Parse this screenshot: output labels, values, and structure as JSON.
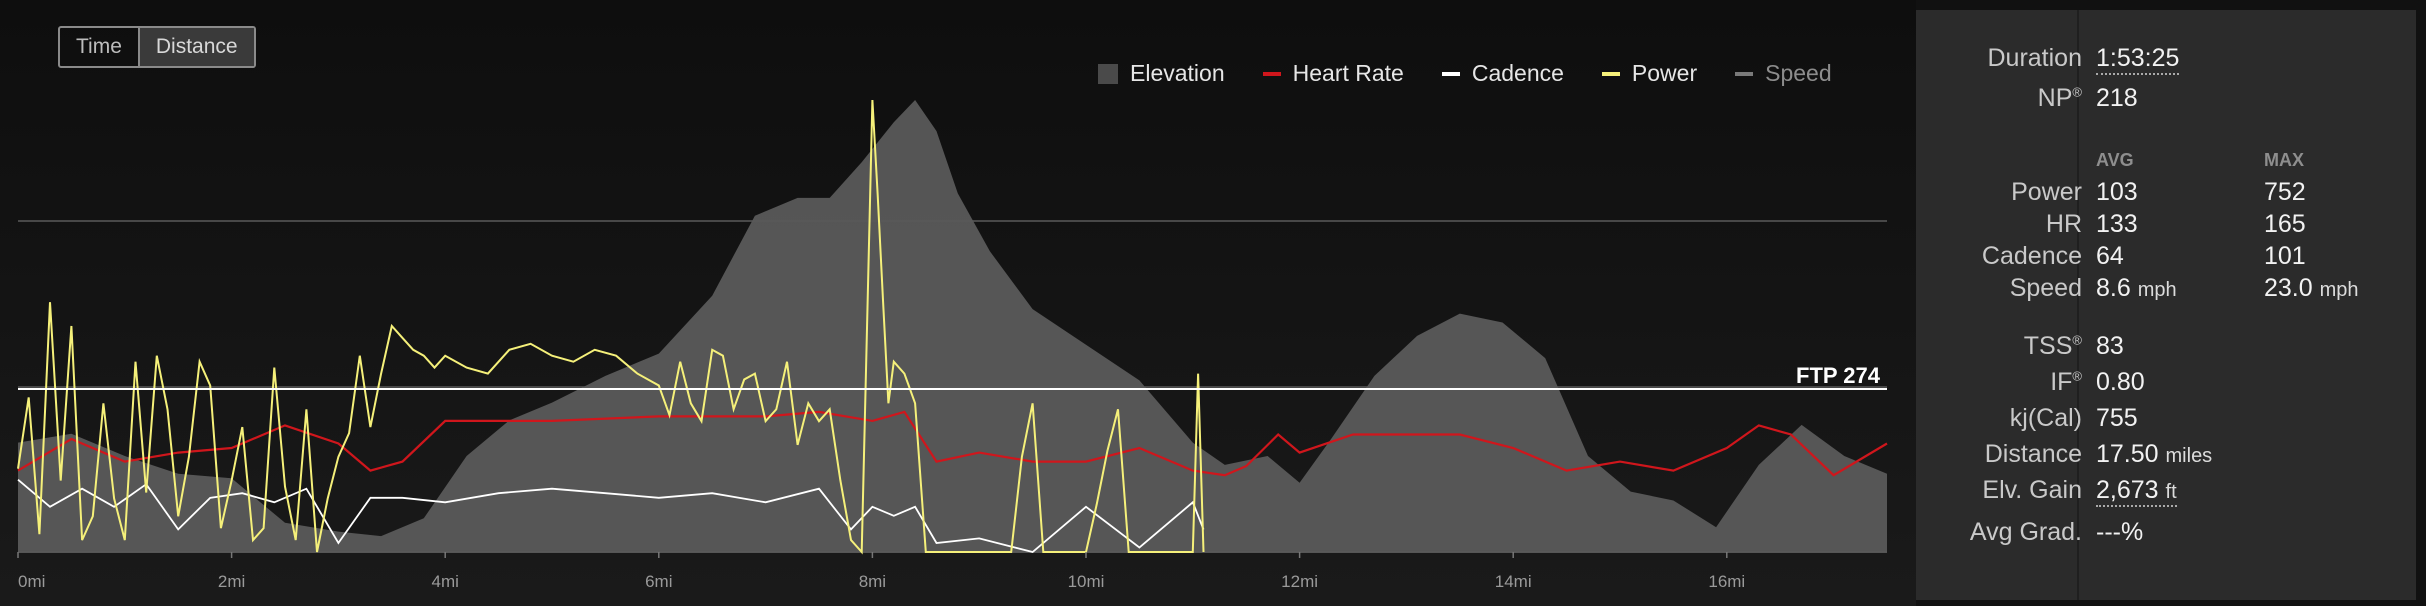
{
  "toggle": {
    "time_label": "Time",
    "distance_label": "Distance",
    "active": "Distance"
  },
  "legend": {
    "elevation": "Elevation",
    "heart_rate": "Heart Rate",
    "cadence": "Cadence",
    "power": "Power",
    "speed": "Speed"
  },
  "colors": {
    "elevation": "#5a5a5a",
    "heart_rate": "#d0161c",
    "cadence": "#ffffff",
    "power": "#f5f07a",
    "speed": "#7a7a7a",
    "ftp_line": "#ffffff"
  },
  "chart_data": {
    "type": "line",
    "xlabel": "",
    "ylabel": "",
    "x_unit": "mi",
    "xlim": [
      0,
      17.5
    ],
    "x_ticks": [
      "0mi",
      "2mi",
      "4mi",
      "6mi",
      "8mi",
      "10mi",
      "12mi",
      "14mi",
      "16mi"
    ],
    "power_ylim": [
      0,
      760
    ],
    "ftp_label": "FTP 274",
    "ftp_value": 274,
    "grid": true,
    "legend_position": "top-right",
    "series": [
      {
        "name": "Elevation",
        "type": "area",
        "relative_level": true,
        "x": [
          0,
          0.5,
          1,
          1.5,
          2,
          2.5,
          3,
          3.4,
          3.8,
          4.2,
          4.6,
          5,
          5.5,
          6,
          6.5,
          6.9,
          7.3,
          7.6,
          7.9,
          8.2,
          8.4,
          8.6,
          8.8,
          9.1,
          9.5,
          10,
          10.5,
          11,
          11.3,
          11.7,
          12,
          12.3,
          12.7,
          13.1,
          13.5,
          13.9,
          14.3,
          14.7,
          15.1,
          15.5,
          15.9,
          16.3,
          16.7,
          17.1,
          17.5
        ],
        "values": [
          0.23,
          0.25,
          0.2,
          0.16,
          0.15,
          0.05,
          0.03,
          0.02,
          0.06,
          0.2,
          0.28,
          0.32,
          0.38,
          0.43,
          0.56,
          0.74,
          0.78,
          0.78,
          0.86,
          0.95,
          1.0,
          0.93,
          0.79,
          0.66,
          0.53,
          0.45,
          0.37,
          0.23,
          0.18,
          0.2,
          0.14,
          0.24,
          0.38,
          0.47,
          0.52,
          0.5,
          0.42,
          0.2,
          0.12,
          0.1,
          0.04,
          0.18,
          0.27,
          0.2,
          0.16
        ]
      },
      {
        "name": "Heart Rate",
        "type": "line",
        "relative_level": true,
        "x": [
          0,
          0.5,
          1,
          1.5,
          2,
          2.5,
          3,
          3.3,
          3.6,
          4,
          4.5,
          5,
          6,
          7,
          7.5,
          8,
          8.3,
          8.6,
          9,
          9.5,
          10,
          10.5,
          11,
          11.3,
          11.5,
          11.8,
          12,
          12.5,
          13,
          13.5,
          14,
          14.5,
          15,
          15.5,
          16,
          16.3,
          16.6,
          17,
          17.5
        ],
        "values": [
          0.18,
          0.25,
          0.2,
          0.22,
          0.23,
          0.28,
          0.24,
          0.18,
          0.2,
          0.29,
          0.29,
          0.29,
          0.3,
          0.3,
          0.31,
          0.29,
          0.31,
          0.2,
          0.22,
          0.2,
          0.2,
          0.23,
          0.18,
          0.17,
          0.19,
          0.26,
          0.22,
          0.26,
          0.26,
          0.26,
          0.23,
          0.18,
          0.2,
          0.18,
          0.23,
          0.28,
          0.26,
          0.17,
          0.24
        ]
      },
      {
        "name": "Cadence",
        "type": "line",
        "relative_level": true,
        "x": [
          0,
          0.3,
          0.6,
          0.9,
          1.2,
          1.5,
          1.8,
          2.1,
          2.4,
          2.7,
          3,
          3.3,
          3.6,
          4,
          4.5,
          5,
          5.5,
          6,
          6.5,
          7,
          7.5,
          7.8,
          8,
          8.2,
          8.4,
          8.6,
          9,
          9.5,
          10,
          10.5,
          11,
          11.1
        ],
        "values": [
          0.16,
          0.1,
          0.14,
          0.1,
          0.15,
          0.05,
          0.12,
          0.13,
          0.11,
          0.14,
          0.02,
          0.12,
          0.12,
          0.11,
          0.13,
          0.14,
          0.13,
          0.12,
          0.13,
          0.11,
          0.14,
          0.05,
          0.1,
          0.08,
          0.1,
          0.02,
          0.03,
          0.0,
          0.1,
          0.01,
          0.11,
          0.05
        ]
      },
      {
        "name": "Power",
        "type": "line",
        "x": [
          0,
          0.1,
          0.2,
          0.3,
          0.4,
          0.5,
          0.6,
          0.7,
          0.8,
          0.9,
          1,
          1.1,
          1.2,
          1.3,
          1.4,
          1.5,
          1.6,
          1.7,
          1.8,
          1.9,
          2,
          2.1,
          2.2,
          2.3,
          2.4,
          2.5,
          2.6,
          2.7,
          2.8,
          2.9,
          3,
          3.1,
          3.2,
          3.3,
          3.4,
          3.5,
          3.6,
          3.7,
          3.8,
          3.9,
          4,
          4.2,
          4.4,
          4.6,
          4.8,
          5,
          5.2,
          5.4,
          5.6,
          5.8,
          6,
          6.1,
          6.2,
          6.3,
          6.4,
          6.5,
          6.6,
          6.7,
          6.8,
          6.9,
          7,
          7.1,
          7.2,
          7.3,
          7.4,
          7.5,
          7.6,
          7.7,
          7.8,
          7.9,
          8,
          8.05,
          8.1,
          8.15,
          8.2,
          8.3,
          8.4,
          8.5,
          8.6,
          8.7,
          8.8,
          9,
          9.2,
          9.3,
          9.4,
          9.5,
          9.6,
          9.7,
          9.8,
          9.9,
          10,
          10.1,
          10.2,
          10.3,
          10.4,
          10.5,
          10.6,
          10.7,
          10.8,
          10.9,
          11,
          11.05,
          11.1
        ],
        "values": [
          140,
          260,
          30,
          420,
          120,
          380,
          20,
          60,
          250,
          90,
          20,
          320,
          100,
          330,
          240,
          60,
          160,
          320,
          280,
          40,
          120,
          210,
          20,
          40,
          310,
          110,
          20,
          240,
          0,
          90,
          160,
          200,
          330,
          210,
          300,
          380,
          360,
          340,
          330,
          310,
          330,
          310,
          300,
          340,
          350,
          330,
          320,
          340,
          330,
          300,
          280,
          230,
          320,
          250,
          220,
          340,
          330,
          240,
          290,
          300,
          220,
          240,
          320,
          180,
          250,
          220,
          240,
          120,
          20,
          0,
          760,
          600,
          420,
          250,
          320,
          300,
          250,
          0,
          0,
          0,
          0,
          0,
          0,
          0,
          160,
          250,
          0,
          0,
          0,
          0,
          0,
          80,
          170,
          240,
          0,
          0,
          0,
          0,
          0,
          0,
          0,
          300,
          0
        ]
      },
      {
        "name": "Speed",
        "type": "line",
        "x": [],
        "values": []
      }
    ]
  },
  "stats": {
    "duration_label": "Duration",
    "duration_value": "1:53:25",
    "np_label": "NP",
    "np_value": "218",
    "avg_header": "AVG",
    "max_header": "MAX",
    "power_label": "Power",
    "power_avg": "103",
    "power_max": "752",
    "hr_label": "HR",
    "hr_avg": "133",
    "hr_max": "165",
    "cadence_label": "Cadence",
    "cadence_avg": "64",
    "cadence_max": "101",
    "speed_label": "Speed",
    "speed_avg": "8.6",
    "speed_max": "23.0",
    "speed_unit": "mph",
    "tss_label": "TSS",
    "tss_value": "83",
    "if_label": "IF",
    "if_value": "0.80",
    "kj_label": "kj(Cal)",
    "kj_value": "755",
    "distance_label": "Distance",
    "distance_value": "17.50",
    "distance_unit": "miles",
    "elv_label": "Elv. Gain",
    "elv_value": "2,673",
    "elv_unit": "ft",
    "grad_label": "Avg Grad.",
    "grad_value": "---%",
    "reg_mark": "®"
  }
}
